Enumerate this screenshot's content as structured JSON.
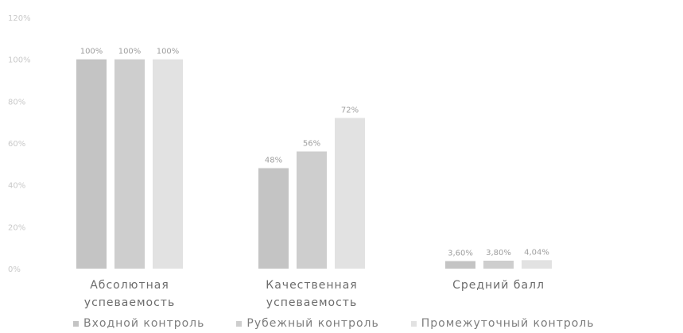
{
  "chart_data": {
    "type": "bar",
    "ylim": [
      0,
      120
    ],
    "yticks": [
      "0%",
      "20%",
      "40%",
      "60%",
      "80%",
      "100%",
      "120%"
    ],
    "categories": [
      [
        "Абсолютная",
        "успеваемость"
      ],
      [
        "Качественная",
        "успеваемость"
      ],
      [
        "Средний балл"
      ]
    ],
    "series": [
      {
        "name": "Входной контроль",
        "color": "#c4c4c4",
        "values": [
          100,
          48,
          3.6
        ],
        "labels": [
          "100%",
          "48%",
          "3,60%"
        ]
      },
      {
        "name": "Рубежный контроль",
        "color": "#cecece",
        "values": [
          100,
          56,
          3.8
        ],
        "labels": [
          "100%",
          "56%",
          "3,80%"
        ]
      },
      {
        "name": "Промежуточный контроль",
        "color": "#e2e2e2",
        "values": [
          100,
          72,
          4.04
        ],
        "labels": [
          "100%",
          "72%",
          "4,04%"
        ]
      }
    ],
    "legend_position": "bottom",
    "grid": false
  }
}
